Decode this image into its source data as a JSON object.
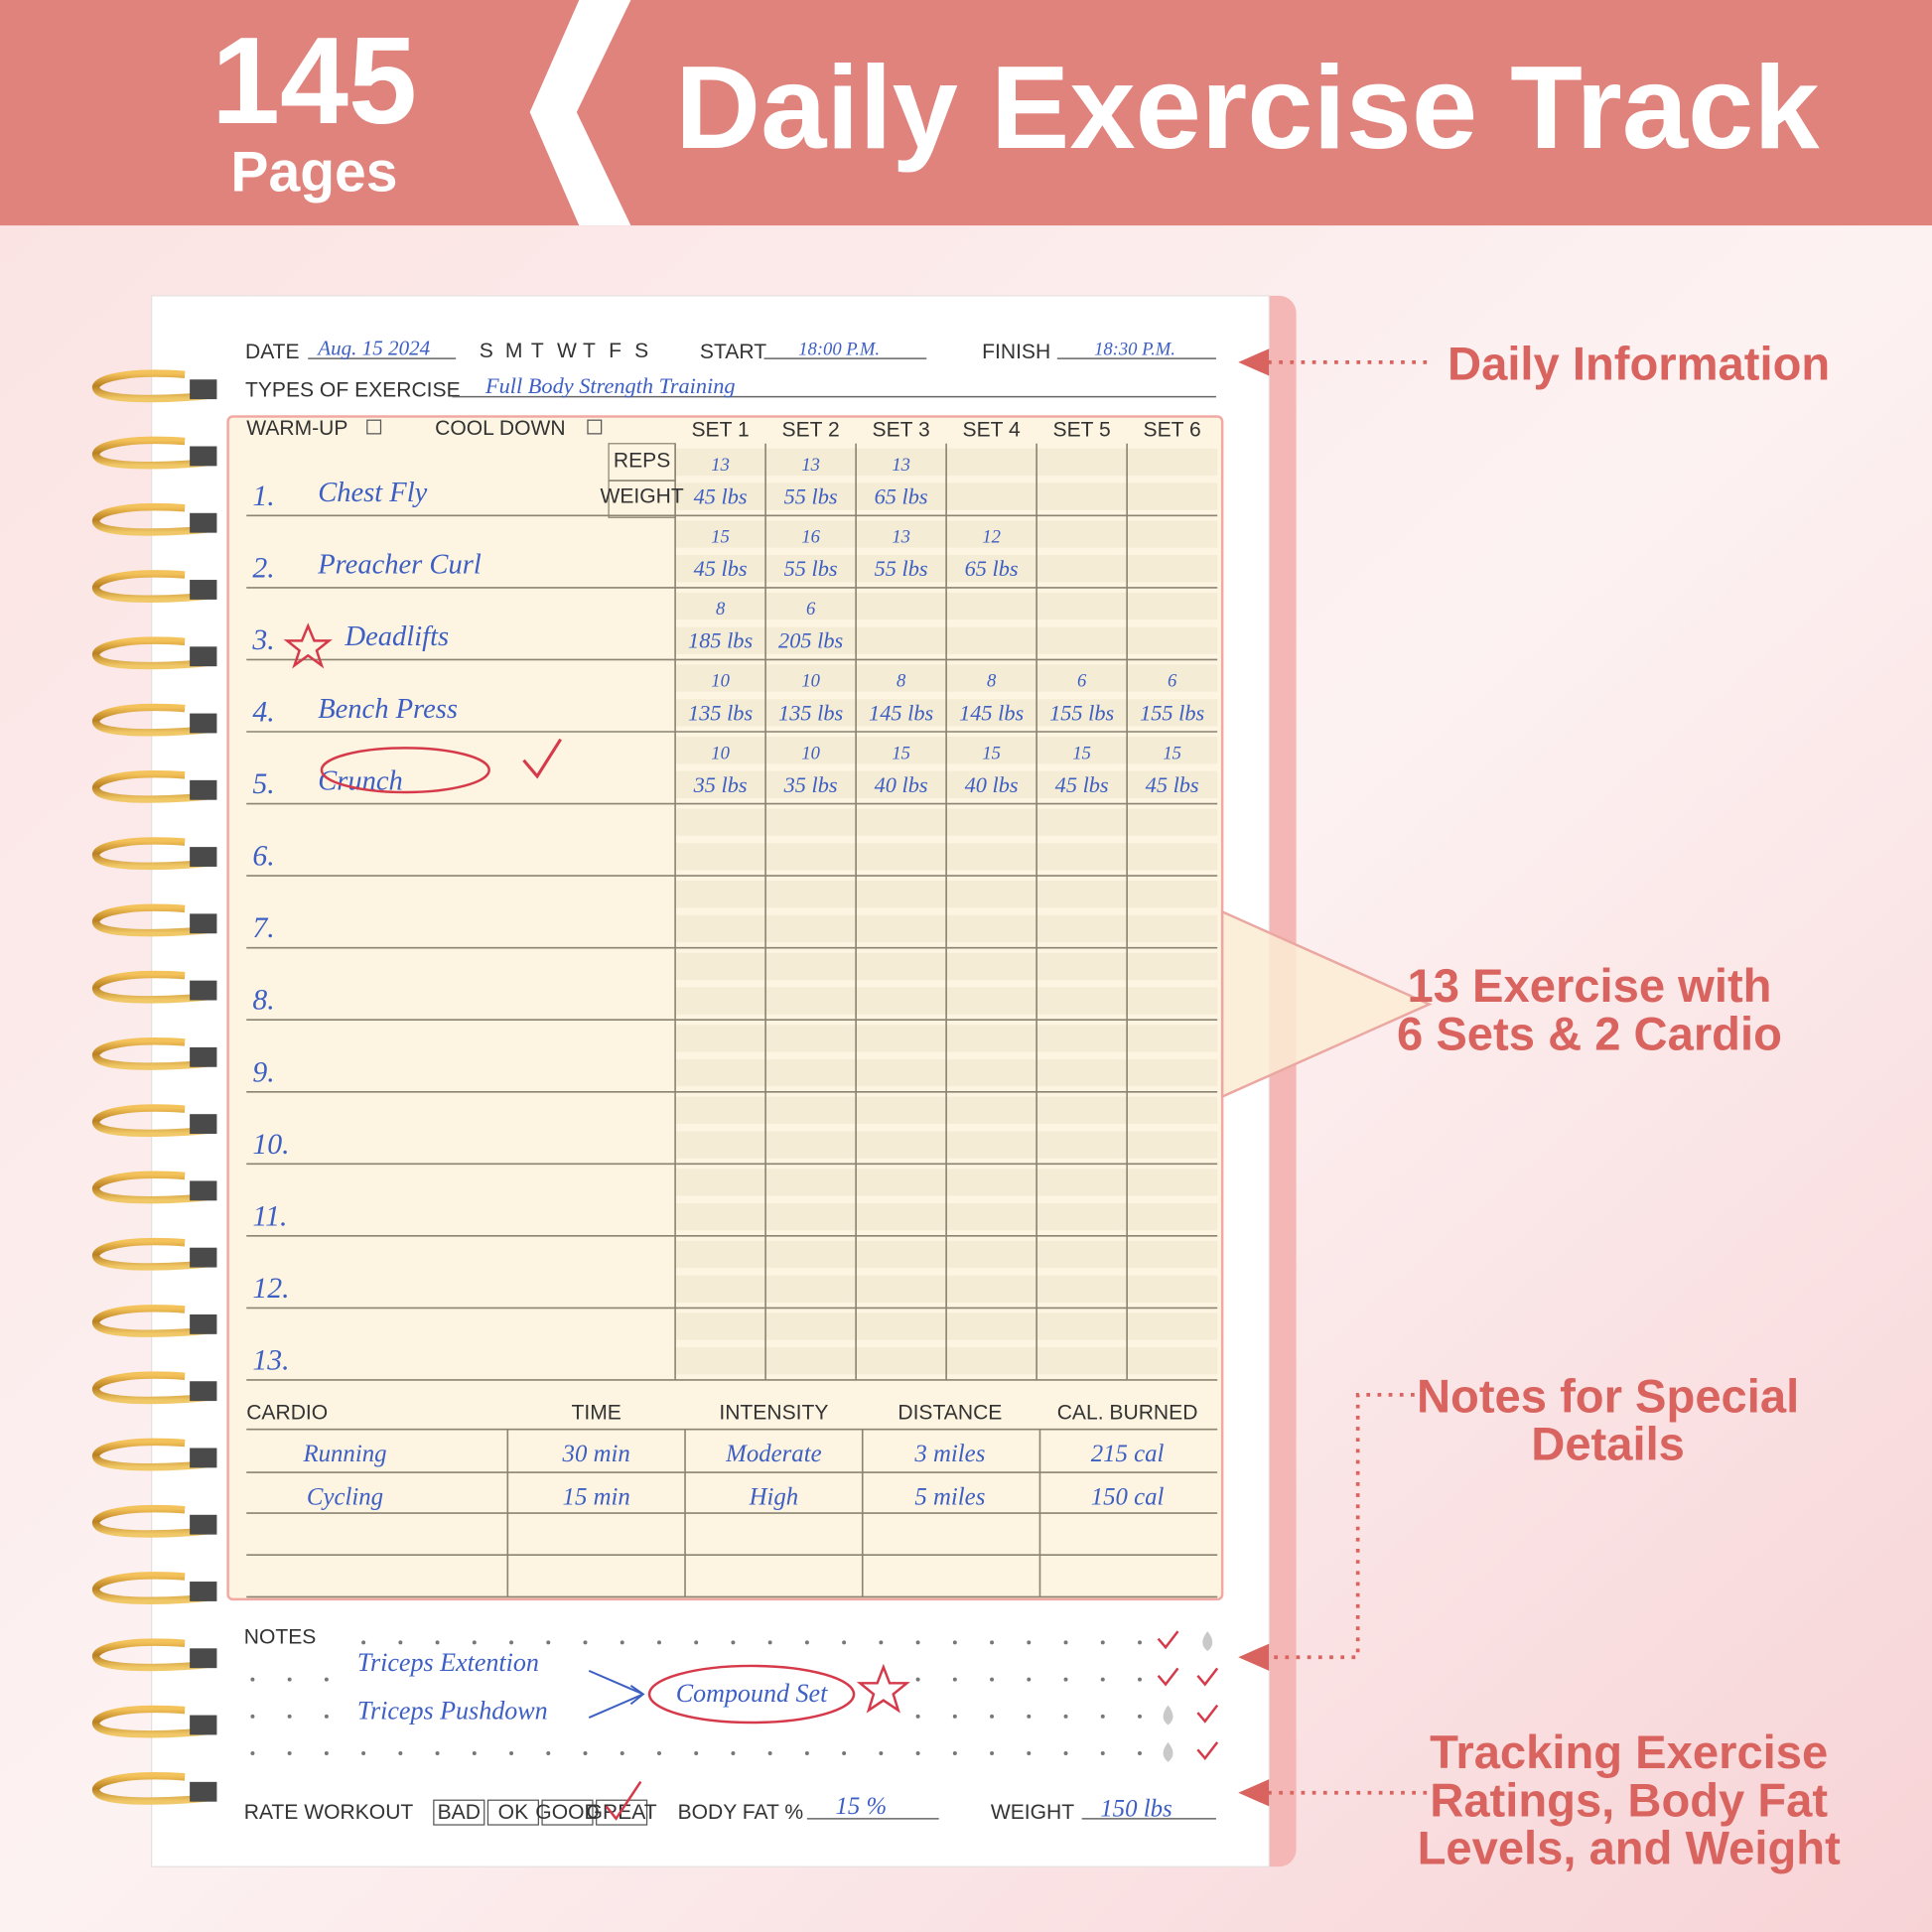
{
  "banner": {
    "count": "145",
    "unit": "Pages",
    "title": "Daily Exercise Track"
  },
  "header": {
    "date_label": "DATE",
    "date": "Aug. 15 2024",
    "days": [
      "S",
      "M",
      "T",
      "W",
      "T",
      "F",
      "S"
    ],
    "start_label": "START",
    "start": "18:00 P.M.",
    "finish_label": "FINISH",
    "finish": "18:30 P.M.",
    "types_label": "TYPES OF EXERCISE",
    "types": "Full Body Strength Training"
  },
  "table": {
    "warmup": "WARM-UP",
    "cooldown": "COOL DOWN",
    "sets": [
      "SET 1",
      "SET 2",
      "SET 3",
      "SET 4",
      "SET 5",
      "SET 6"
    ],
    "reps_label": "REPS",
    "weight_label": "WEIGHT",
    "exercises": [
      {
        "number": "1.",
        "name": "Chest Fly",
        "reps": [
          "13",
          "13",
          "13",
          null,
          null,
          null
        ],
        "weights": [
          "45 lbs",
          "55 lbs",
          "65 lbs",
          null,
          null,
          null
        ]
      },
      {
        "number": "2.",
        "name": "Preacher Curl",
        "reps": [
          "15",
          "16",
          "13",
          "12",
          null,
          null
        ],
        "weights": [
          "45 lbs",
          "55 lbs",
          "55 lbs",
          "65 lbs",
          null,
          null
        ]
      },
      {
        "number": "3.",
        "name": "Deadlifts",
        "reps": [
          "8",
          "6",
          null,
          null,
          null,
          null
        ],
        "weights": [
          "185 lbs",
          "205 lbs",
          null,
          null,
          null,
          null
        ]
      },
      {
        "number": "4.",
        "name": "Bench Press",
        "reps": [
          "10",
          "10",
          "8",
          "8",
          "6",
          "6"
        ],
        "weights": [
          "135 lbs",
          "135 lbs",
          "145 lbs",
          "145 lbs",
          "155 lbs",
          "155 lbs"
        ]
      },
      {
        "number": "5.",
        "name": "Crunch",
        "reps": [
          "10",
          "10",
          "15",
          "15",
          "15",
          "15"
        ],
        "weights": [
          "35 lbs",
          "35 lbs",
          "40 lbs",
          "40 lbs",
          "45 lbs",
          "45 lbs"
        ]
      },
      {
        "number": "6.",
        "name": null,
        "reps": null,
        "weights": null
      },
      {
        "number": "7.",
        "name": null,
        "reps": null,
        "weights": null
      },
      {
        "number": "8.",
        "name": null,
        "reps": null,
        "weights": null
      },
      {
        "number": "9.",
        "name": null,
        "reps": null,
        "weights": null
      },
      {
        "number": "10.",
        "name": null,
        "reps": null,
        "weights": null
      },
      {
        "number": "11.",
        "name": null,
        "reps": null,
        "weights": null
      },
      {
        "number": "12.",
        "name": null,
        "reps": null,
        "weights": null
      },
      {
        "number": "13.",
        "name": null,
        "reps": null,
        "weights": null
      }
    ]
  },
  "cardio": {
    "columns": [
      "CARDIO",
      "TIME",
      "INTENSITY",
      "DISTANCE",
      "CAL. BURNED"
    ],
    "rows": [
      [
        "Running",
        "30 min",
        "Moderate",
        "3 miles",
        "215 cal"
      ],
      [
        "Cycling",
        "15 min",
        "High",
        "5 miles",
        "150 cal"
      ]
    ]
  },
  "notes": {
    "label": "NOTES",
    "lines": [
      "Triceps Extention",
      "Triceps Pushdown"
    ],
    "highlight": "Compound Set"
  },
  "footer": {
    "rate_label": "RATE WORKOUT",
    "ratings": [
      "BAD",
      "OK",
      "GOOD",
      "GREAT"
    ],
    "body_fat_label": "BODY FAT %",
    "body_fat": "15 %",
    "weight_label": "WEIGHT",
    "weight": "150 lbs"
  },
  "callouts": {
    "daily": [
      "Daily Information"
    ],
    "exercise": [
      "13 Exercise with",
      "6 Sets & 2 Cardio"
    ],
    "notes": [
      "Notes for Special",
      "Details"
    ],
    "tracking": [
      "Tracking Exercise",
      "Ratings, Body Fat",
      "Levels, and Weight"
    ]
  }
}
